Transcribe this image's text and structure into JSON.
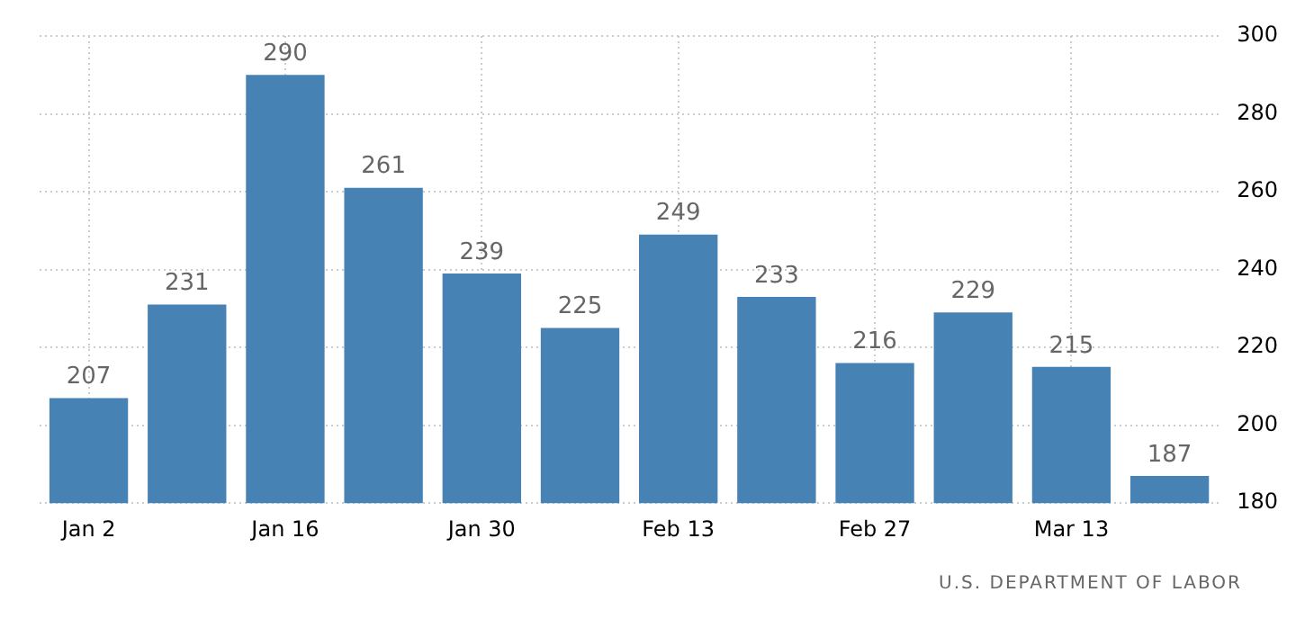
{
  "chart_data": {
    "type": "bar",
    "categories": [
      "Jan 2",
      null,
      "Jan 16",
      null,
      "Jan 30",
      null,
      "Feb 13",
      null,
      "Feb 27",
      null,
      "Mar 13",
      null
    ],
    "values": [
      207,
      231,
      290,
      261,
      239,
      225,
      249,
      233,
      216,
      229,
      215,
      187
    ],
    "color": "#4682b4",
    "ylim": [
      180,
      300
    ],
    "yticks": [
      180,
      200,
      220,
      240,
      260,
      280,
      300
    ],
    "grid": true,
    "data_labels": true,
    "annotations": [
      "U.S. DEPARTMENT OF LABOR"
    ]
  }
}
